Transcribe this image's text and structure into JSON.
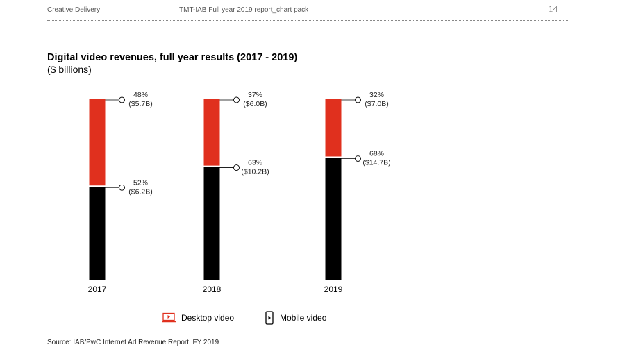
{
  "header": {
    "left": "Creative Delivery",
    "mid": "TMT-IAB Full year 2019 report_chart pack",
    "page": "14"
  },
  "title": "Digital video revenues, full year results (2017 - 2019)",
  "subtitle": "($ billions)",
  "colors": {
    "desktop": "#e0301e",
    "mobile": "#000000"
  },
  "chart_data": {
    "type": "bar",
    "stacked": true,
    "normalized": true,
    "categories": [
      "2017",
      "2018",
      "2019"
    ],
    "series": [
      {
        "name": "Mobile video",
        "values": [
          52,
          63,
          68
        ],
        "labels_pct": [
          "52%",
          "63%",
          "68%"
        ],
        "labels_val": [
          "($6.2B)",
          "($10.2B)",
          "($14.7B)"
        ]
      },
      {
        "name": "Desktop video",
        "values": [
          48,
          37,
          32
        ],
        "labels_pct": [
          "48%",
          "37%",
          "32%"
        ],
        "labels_val": [
          "($5.7B)",
          "($6.0B)",
          "($7.0B)"
        ]
      }
    ],
    "ylim": [
      0,
      100
    ],
    "legend_position": "bottom"
  },
  "legend": [
    {
      "label": "Desktop video",
      "icon": "desktop-video-icon"
    },
    {
      "label": "Mobile video",
      "icon": "mobile-video-icon"
    }
  ],
  "source": "Source: IAB/PwC Internet Ad Revenue Report, FY 2019"
}
